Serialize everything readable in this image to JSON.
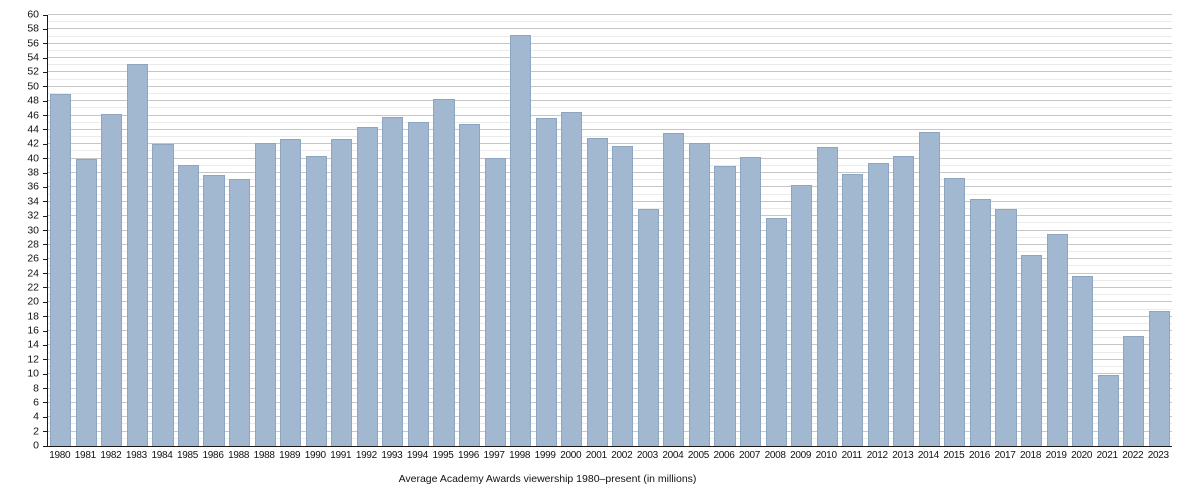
{
  "chart_data": {
    "type": "bar",
    "title": "Average Academy Awards viewership 1980–present (in millions)",
    "xlabel": "",
    "ylabel": "",
    "categories": [
      "1980",
      "1981",
      "1982",
      "1983",
      "1984",
      "1985",
      "1986",
      "1988",
      "1988",
      "1989",
      "1990",
      "1991",
      "1992",
      "1993",
      "1994",
      "1995",
      "1996",
      "1997",
      "1998",
      "1999",
      "2000",
      "2001",
      "2002",
      "2003",
      "2004",
      "2005",
      "2006",
      "2007",
      "2008",
      "2009",
      "2010",
      "2011",
      "2012",
      "2013",
      "2014",
      "2015",
      "2016",
      "2017",
      "2018",
      "2019",
      "2020",
      "2021",
      "2022",
      "2023"
    ],
    "values": [
      48.97,
      39.92,
      46.25,
      53.23,
      42.05,
      39.07,
      37.76,
      37.19,
      42.23,
      42.68,
      40.38,
      42.73,
      44.41,
      45.74,
      45.08,
      48.28,
      44.87,
      40.08,
      57.25,
      45.63,
      46.53,
      42.94,
      41.78,
      33.04,
      43.56,
      42.14,
      38.94,
      40.17,
      31.76,
      36.31,
      41.62,
      37.92,
      39.46,
      40.38,
      43.74,
      37.26,
      34.42,
      32.94,
      26.54,
      29.56,
      23.64,
      9.85,
      15.36,
      18.75
    ],
    "ylim": [
      0,
      60
    ],
    "y_tick_labels": [
      0,
      2,
      4,
      6,
      8,
      10,
      12,
      14,
      16,
      18,
      20,
      22,
      24,
      26,
      28,
      30,
      32,
      34,
      36,
      38,
      40,
      42,
      44,
      46,
      48,
      50,
      52,
      54,
      56,
      58,
      60
    ],
    "minor_grid_step": 1,
    "grid": true,
    "legend": "none",
    "colors": {
      "bar": "#a2b8d0",
      "bar_border": "#8ca6c0",
      "major_grid": "#c6c6c6",
      "minor_grid": "#ebebeb",
      "axis": "#1a1a1a",
      "text": "#111111"
    }
  },
  "caption": {
    "text": "Average Academy Awards viewership 1980–present (in millions)"
  }
}
